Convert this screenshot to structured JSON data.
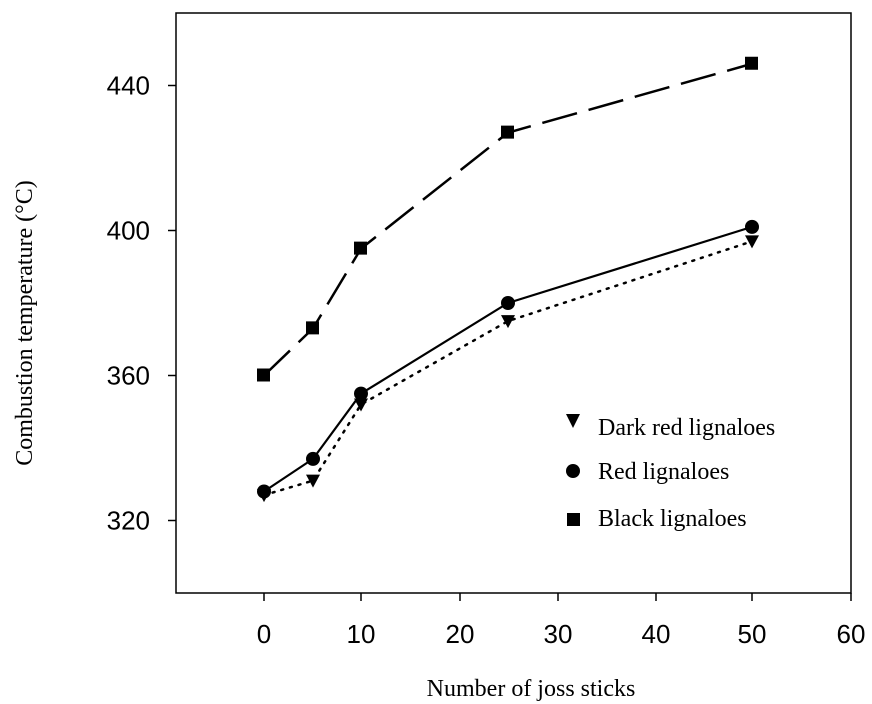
{
  "chart_data": {
    "type": "line",
    "xlabel": "Number of joss sticks",
    "ylabel": "Combustion temperature (°C)",
    "x_tick_labels": [
      "0",
      "10",
      "20",
      "30",
      "40",
      "50",
      "60"
    ],
    "y_tick_labels": [
      "320",
      "360",
      "400",
      "440"
    ],
    "ylim": [
      300,
      460
    ],
    "legend_position": "bottom-right",
    "grid": false,
    "x": [
      "1",
      "5",
      "10",
      "25",
      "50"
    ],
    "series": [
      {
        "name": "Dark red lignaloes",
        "marker": "triangle-down",
        "line_style": "dotted",
        "values": [
          327,
          331,
          352,
          375,
          397
        ]
      },
      {
        "name": "Red lignaloes",
        "marker": "circle",
        "line_style": "solid",
        "values": [
          328,
          337,
          355,
          380,
          401
        ]
      },
      {
        "name": "Black lignaloes",
        "marker": "square",
        "line_style": "dashed",
        "values": [
          360,
          373,
          395,
          427,
          446
        ]
      }
    ]
  }
}
